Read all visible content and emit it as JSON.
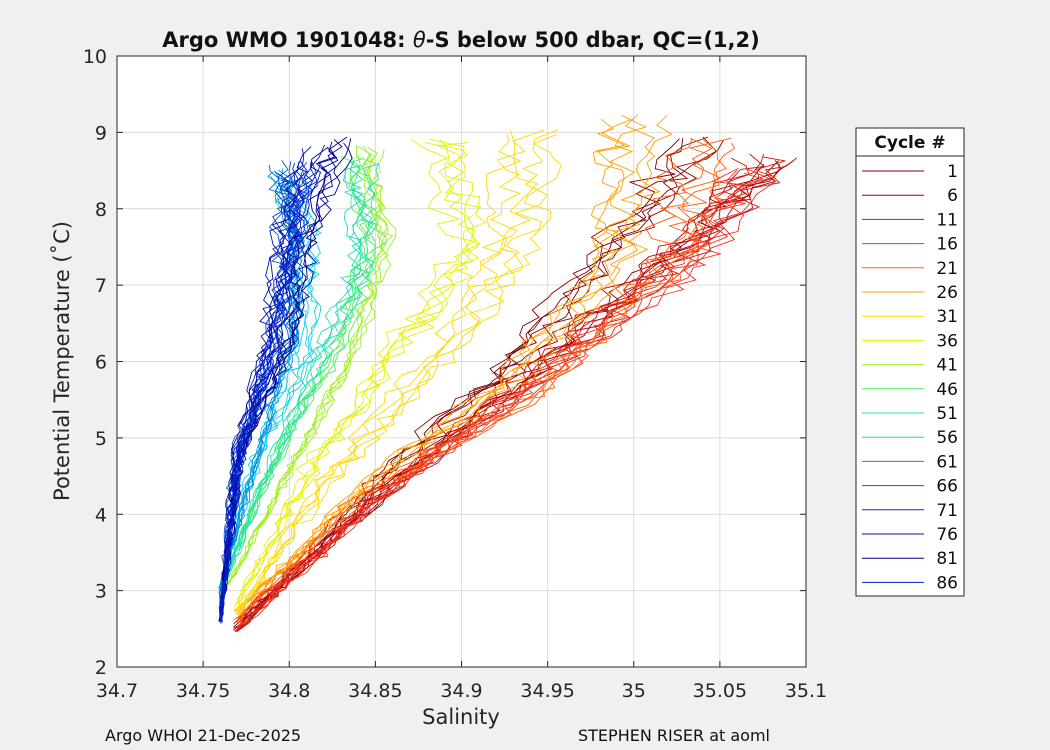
{
  "chart_data": {
    "type": "line",
    "title": "Argo WMO 1901048: θ-S below 500 dbar,  QC=(1,2)",
    "title_prefix": "Argo WMO 1901048: ",
    "title_theta": "θ",
    "title_suffix": "-S below 500 dbar,  QC=(1,2)",
    "xlabel": "Salinity",
    "ylabel": "Potential Temperature (˚C)",
    "xlim": [
      34.7,
      35.1
    ],
    "ylim": [
      2,
      10
    ],
    "xticks": [
      "34.7",
      "34.75",
      "34.8",
      "34.85",
      "34.9",
      "34.95",
      "35",
      "35.05",
      "35.1"
    ],
    "yticks": [
      "2",
      "3",
      "4",
      "5",
      "6",
      "7",
      "8",
      "9",
      "10"
    ],
    "grid": true,
    "legend_title": "Cycle #",
    "legend_position": "right",
    "series": [
      {
        "name": "1",
        "color": "#800000"
      },
      {
        "name": "6",
        "color": "#a00000"
      },
      {
        "name": "11",
        "color": "#d01010"
      },
      {
        "name": "16",
        "color": "#f03020"
      },
      {
        "name": "21",
        "color": "#ff6010"
      },
      {
        "name": "26",
        "color": "#ffa000"
      },
      {
        "name": "31",
        "color": "#ffd800"
      },
      {
        "name": "36",
        "color": "#e8f000"
      },
      {
        "name": "41",
        "color": "#a0f020"
      },
      {
        "name": "46",
        "color": "#50f060"
      },
      {
        "name": "51",
        "color": "#20e0b0"
      },
      {
        "name": "56",
        "color": "#10d0f0"
      },
      {
        "name": "61",
        "color": "#0090e0"
      },
      {
        "name": "66",
        "color": "#0060d0"
      },
      {
        "name": "71",
        "color": "#0030c0"
      },
      {
        "name": "76",
        "color": "#0010b0"
      },
      {
        "name": "81",
        "color": "#000090"
      },
      {
        "name": "86",
        "color": "#0020d0"
      }
    ]
  },
  "footer": {
    "left": "Argo WHOI 21-Dec-2025",
    "right": "STEPHEN RISER at aoml"
  }
}
